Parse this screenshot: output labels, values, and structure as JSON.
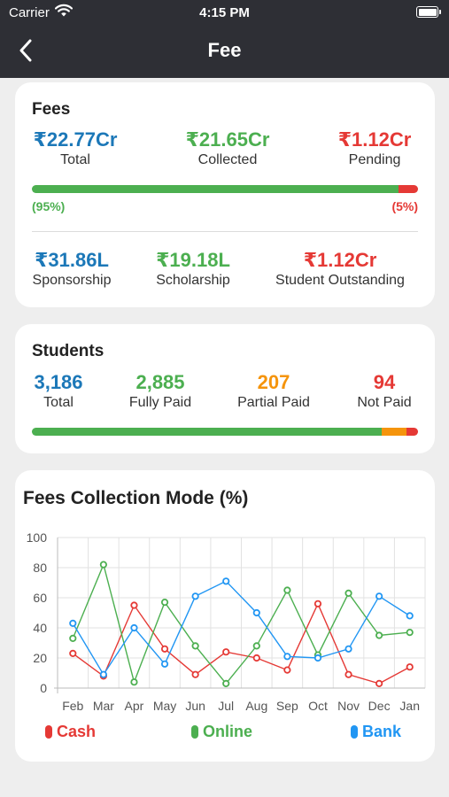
{
  "status_bar": {
    "carrier": "Carrier",
    "time": "4:15 PM"
  },
  "nav": {
    "title": "Fee"
  },
  "fees": {
    "title": "Fees",
    "total": {
      "value": "₹22.77Cr",
      "label": "Total"
    },
    "collected": {
      "value": "₹21.65Cr",
      "label": "Collected"
    },
    "pending": {
      "value": "₹1.12Cr",
      "label": "Pending"
    },
    "collected_pct_label": "(95%)",
    "pending_pct_label": "(5%)",
    "collected_fraction": 0.95,
    "sponsorship": {
      "value": "₹31.86L",
      "label": "Sponsorship"
    },
    "scholarship": {
      "value": "₹19.18L",
      "label": "Scholarship"
    },
    "outstanding": {
      "value": "₹1.12Cr",
      "label": "Student Outstanding"
    }
  },
  "students": {
    "title": "Students",
    "total": {
      "value": "3,186",
      "label": "Total"
    },
    "fully_paid": {
      "value": "2,885",
      "label": "Fully Paid"
    },
    "partial_paid": {
      "value": "207",
      "label": "Partial Paid"
    },
    "not_paid": {
      "value": "94",
      "label": "Not Paid"
    },
    "counts": {
      "fully_paid": 2885,
      "partial_paid": 207,
      "not_paid": 94
    }
  },
  "collection_mode": {
    "title": "Fees Collection Mode (%)"
  },
  "colors": {
    "cash": "#e53935",
    "online": "#4caf50",
    "bank": "#2196f3",
    "partial": "#f5940c"
  },
  "chart_data": {
    "type": "line",
    "title": "Fees Collection Mode (%)",
    "categories": [
      "Feb",
      "Mar",
      "Apr",
      "May",
      "Jun",
      "Jul",
      "Aug",
      "Sep",
      "Oct",
      "Nov",
      "Dec",
      "Jan"
    ],
    "ylim": [
      0,
      100
    ],
    "yticks": [
      0,
      20,
      40,
      60,
      80,
      100
    ],
    "grid": true,
    "legend": "bottom",
    "series": [
      {
        "name": "Cash",
        "color": "#e53935",
        "values": [
          23,
          8,
          55,
          26,
          9,
          24,
          20,
          12,
          56,
          9,
          3,
          14
        ]
      },
      {
        "name": "Online",
        "color": "#4caf50",
        "values": [
          33,
          82,
          4,
          57,
          28,
          3,
          28,
          65,
          22,
          63,
          35,
          37
        ]
      },
      {
        "name": "Bank",
        "color": "#2196f3",
        "values": [
          43,
          9,
          40,
          16,
          61,
          71,
          50,
          21,
          20,
          26,
          61,
          48
        ]
      }
    ]
  }
}
